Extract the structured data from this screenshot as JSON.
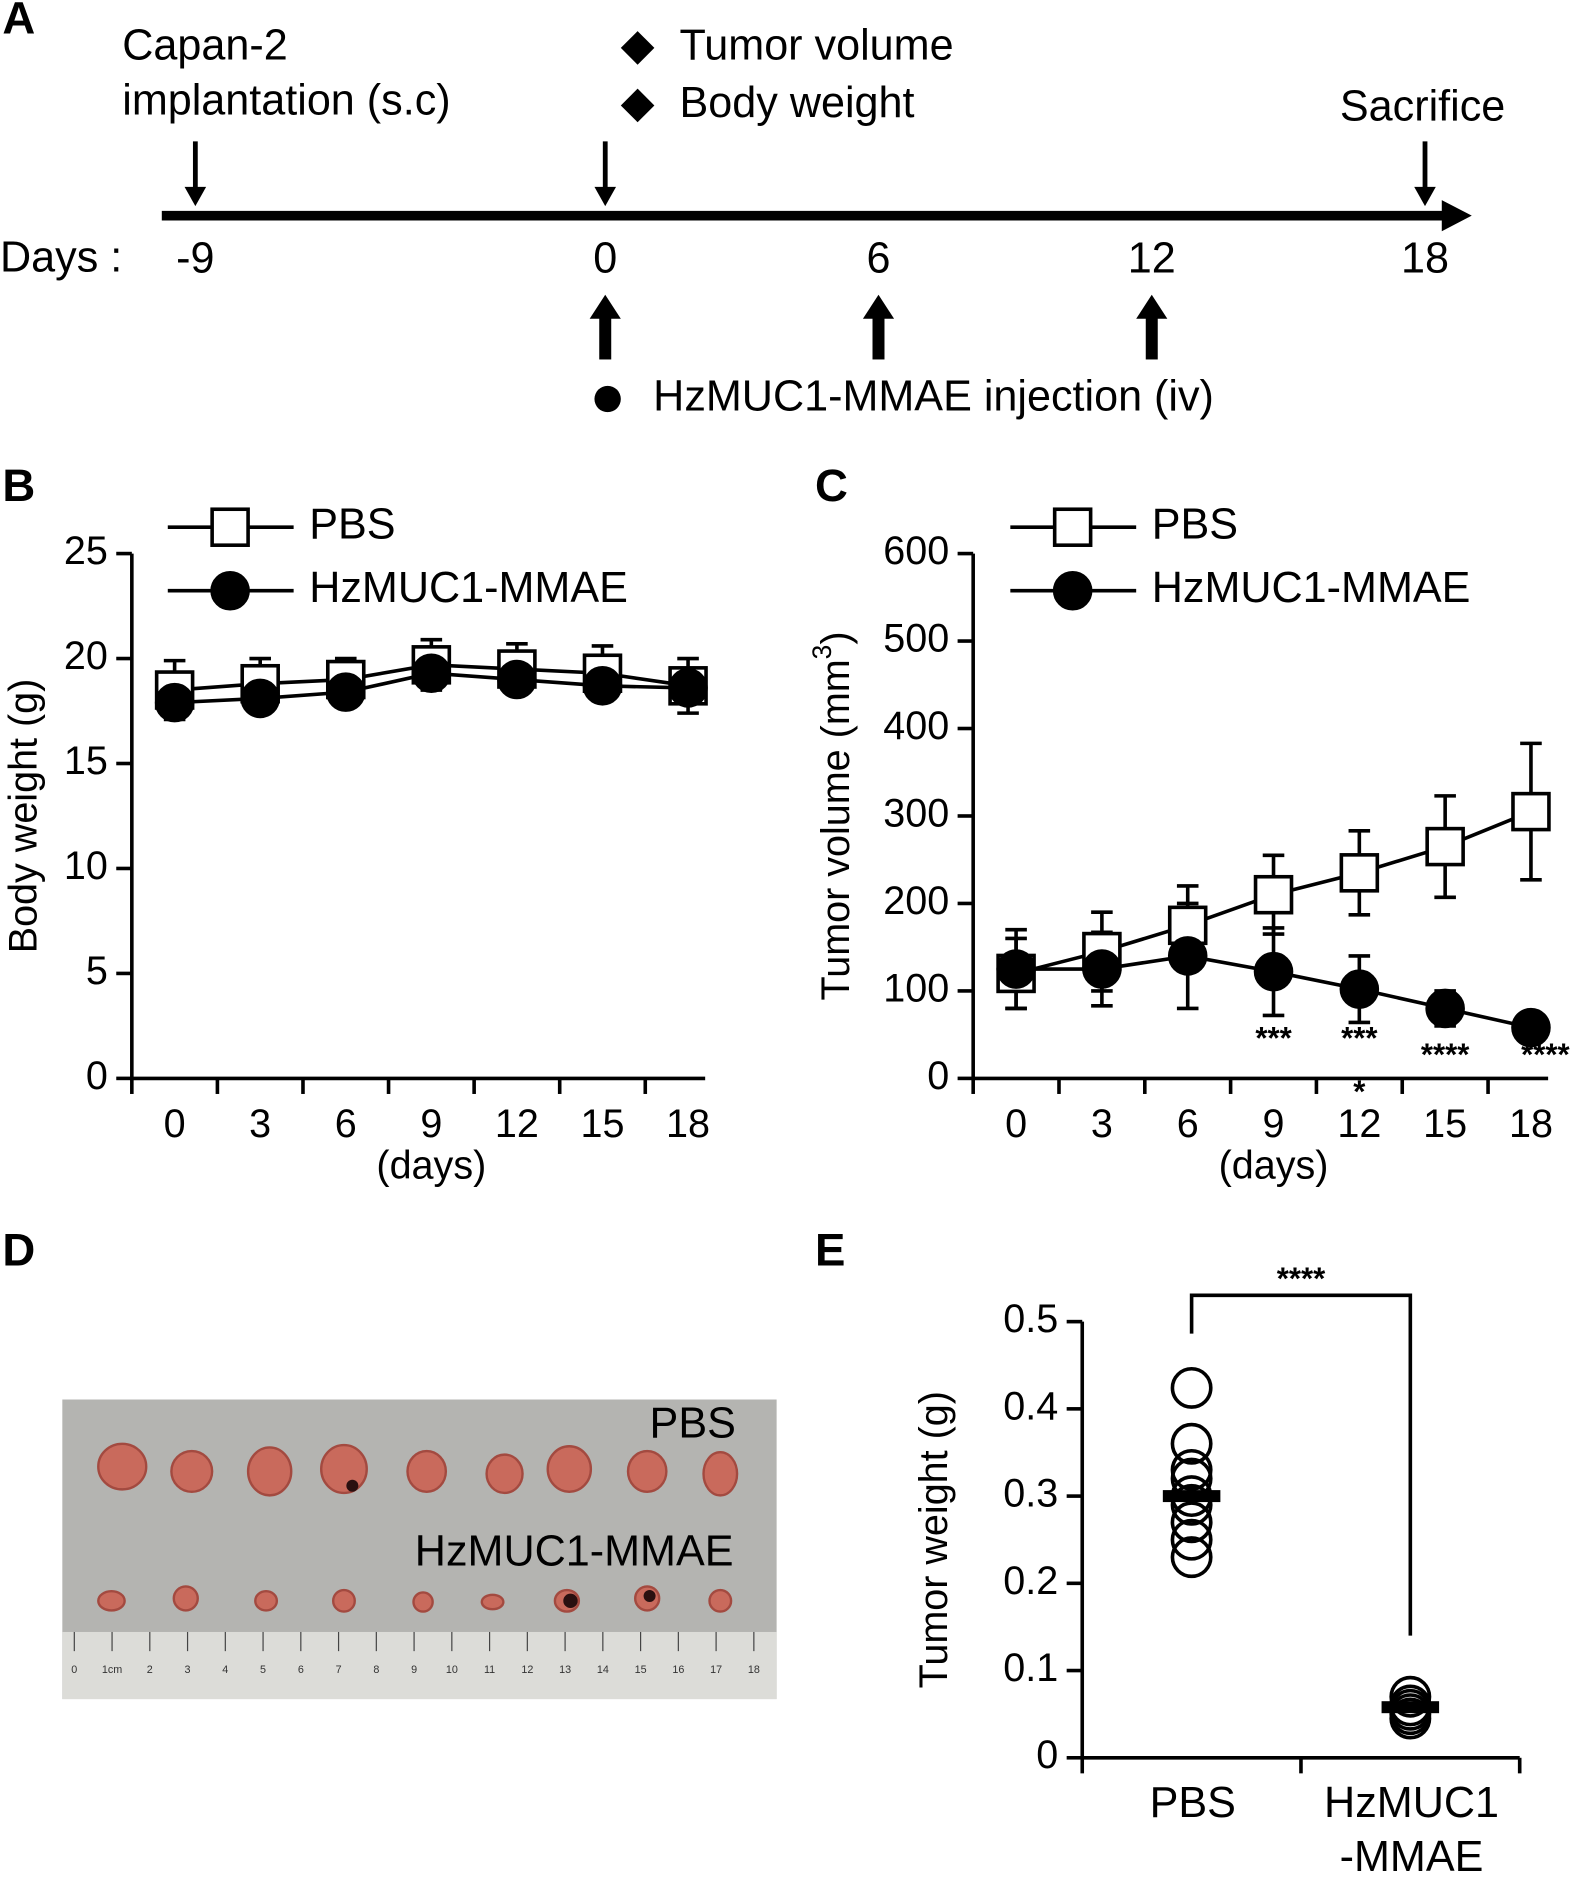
{
  "panel_labels": [
    "A",
    "B",
    "C",
    "D",
    "E"
  ],
  "timeline": {
    "start_label": [
      "Capan-2",
      "implantation (s.c)"
    ],
    "measure_labels": [
      "Tumor volume",
      "Body weight"
    ],
    "end_label": "Sacrifice",
    "days_label": "Days :",
    "days": [
      -9,
      0,
      6,
      12,
      18
    ],
    "injection_label": "HzMUC1-MMAE injection (iv)"
  },
  "chart_data": [
    {
      "type": "line",
      "categories": [
        "0",
        "3",
        "6",
        "9",
        "12",
        "15",
        "18"
      ],
      "xlabel": "(days)",
      "ylabel": [
        "Body weight (g)"
      ],
      "ylim": [
        0,
        25
      ],
      "yticks": [
        0,
        5,
        10,
        15,
        20,
        25
      ],
      "series": [
        {
          "name": "PBS",
          "color": "#000000",
          "marker": "square",
          "marker_fill": "#ffffff",
          "values": [
            18.5,
            18.8,
            19.0,
            19.7,
            19.5,
            19.3,
            18.7
          ],
          "errors": [
            1.4,
            1.2,
            1.0,
            1.2,
            1.2,
            1.3,
            1.3
          ]
        },
        {
          "name": "HzMUC1-MMAE",
          "color": "#000000",
          "marker": "circle",
          "marker_fill": "#000000",
          "values": [
            17.9,
            18.1,
            18.4,
            19.3,
            19.0,
            18.7,
            18.6
          ],
          "errors": [
            0.5,
            0.5,
            0.5,
            0.6,
            0.5,
            0.5,
            0.5
          ]
        }
      ]
    },
    {
      "type": "line",
      "categories": [
        "0",
        "3",
        "6",
        "9",
        "12",
        "15",
        "18"
      ],
      "xlabel": "(days)",
      "ylabel": [
        "Tumor volume (mm",
        "3",
        ")"
      ],
      "ylim": [
        0,
        600
      ],
      "yticks": [
        0,
        100,
        200,
        300,
        400,
        500,
        600
      ],
      "series": [
        {
          "name": "PBS",
          "color": "#000000",
          "marker": "square",
          "marker_fill": "#ffffff",
          "values": [
            120,
            145,
            175,
            210,
            235,
            265,
            305
          ],
          "errors": [
            40,
            45,
            45,
            45,
            48,
            58,
            78
          ]
        },
        {
          "name": "HzMUC1-MMAE",
          "color": "#000000",
          "marker": "circle",
          "marker_fill": "#000000",
          "values": [
            125,
            125,
            140,
            122,
            102,
            80,
            58
          ],
          "errors": [
            45,
            42,
            60,
            50,
            38,
            20,
            5
          ]
        }
      ],
      "significance": [
        null,
        null,
        null,
        "***",
        "***",
        "****",
        "****"
      ],
      "significance_row2": [
        null,
        null,
        null,
        null,
        "*",
        null,
        null
      ]
    },
    {
      "type": "dot",
      "categories": [
        [
          "PBS"
        ],
        [
          "HzMUC1",
          "-MMAE"
        ]
      ],
      "ylabel": [
        "Tumor weight (g)"
      ],
      "ylim": [
        0,
        0.5
      ],
      "yticks": [
        0,
        0.1,
        0.2,
        0.3,
        0.4,
        0.5
      ],
      "groups": [
        {
          "values": [
            0.424,
            0.36,
            0.33,
            0.32,
            0.3,
            0.29,
            0.27,
            0.25,
            0.23
          ],
          "mean": 0.3
        },
        {
          "values": [
            0.07,
            0.06,
            0.055,
            0.05,
            0.045
          ],
          "mean": 0.058
        }
      ],
      "significance": "****"
    }
  ],
  "photo": {
    "top_label": "PBS",
    "bottom_label": "HzMUC1-MMAE",
    "ruler_labels": [
      "0",
      "1cm",
      "2",
      "3",
      "4",
      "5",
      "6",
      "7",
      "8",
      "9",
      "10",
      "11",
      "12",
      "13",
      "14",
      "15",
      "16",
      "17",
      "18"
    ]
  }
}
